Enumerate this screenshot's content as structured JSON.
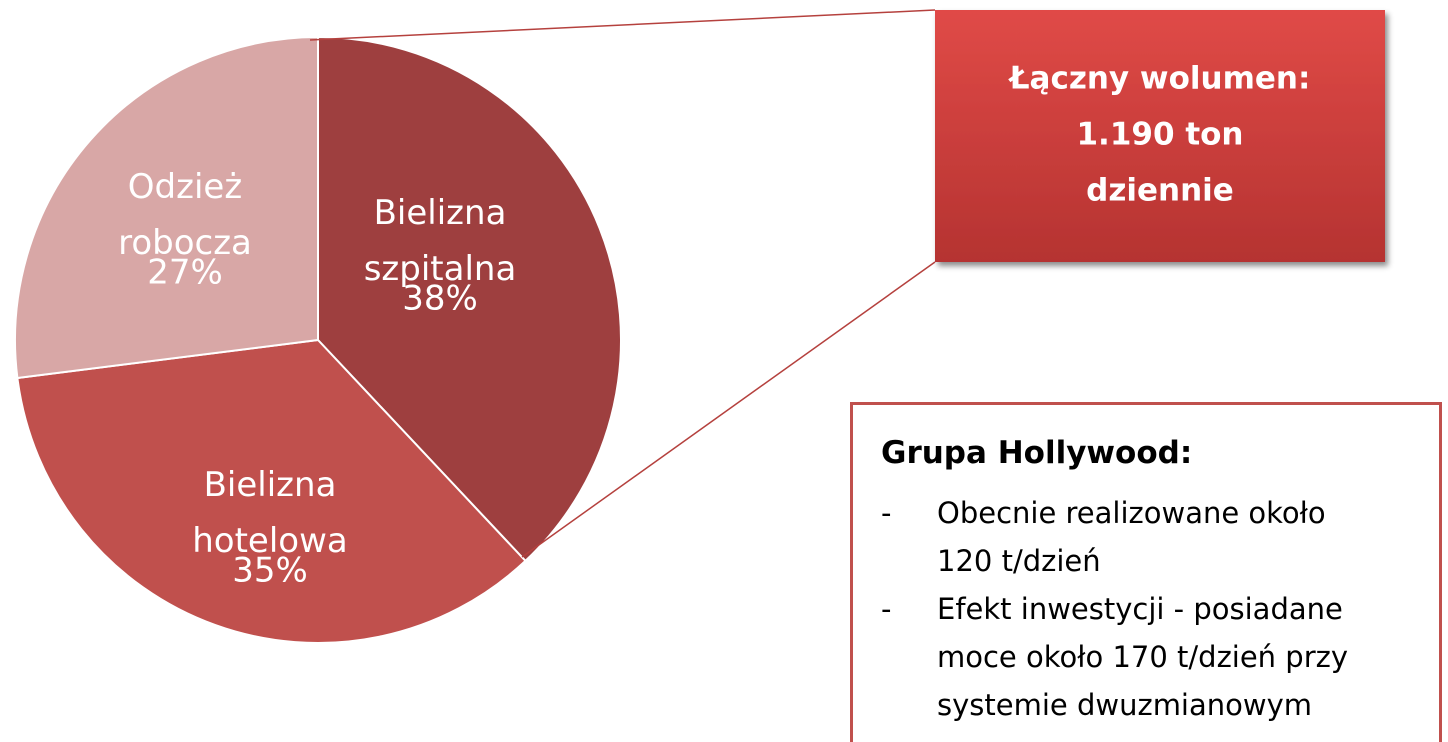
{
  "chart_data": {
    "type": "pie",
    "categories": [
      "Bielizna szpitalna",
      "Bielizna hotelowa",
      "Odzież robocza"
    ],
    "values": [
      38,
      35,
      27
    ],
    "value_labels": [
      "38%",
      "35%",
      "27%"
    ],
    "colors": [
      "#9e3f3f",
      "#c0504d",
      "#d8a7a6"
    ],
    "annotation": [
      "Łączny wolumen:",
      "1.190 ton",
      "dziennie"
    ]
  },
  "info_box": {
    "title": "Grupa Hollywood:",
    "bullet_marker": "-",
    "bullets": [
      [
        "Obecnie realizowane około",
        "120 t/dzień"
      ],
      [
        "Efekt inwestycji - posiadane",
        "moce około 170 t/dzień przy",
        "systemie dwuzmianowym"
      ]
    ]
  }
}
